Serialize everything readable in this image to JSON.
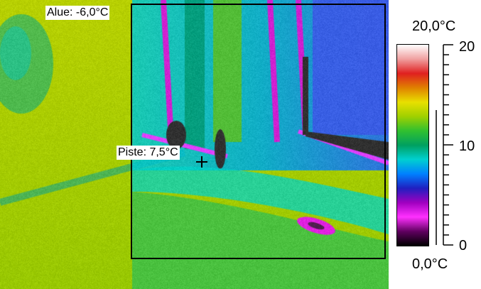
{
  "overlays": {
    "area_label": "Alue: -6,0°C",
    "spot_label": "Piste: 7,5°C"
  },
  "scale": {
    "max_label": "20,0°C",
    "min_label": "0,0°C",
    "tick_labels": [
      "20",
      "10",
      "0"
    ],
    "range": [
      0,
      20
    ],
    "palette": [
      "#ffffff",
      "#f0a0a0",
      "#e02020",
      "#e08000",
      "#e8e000",
      "#a0d000",
      "#30c030",
      "#00a060",
      "#00d0d0",
      "#0080ff",
      "#2020c0",
      "#a000c0",
      "#ff30ff",
      "#600060",
      "#000000"
    ]
  }
}
